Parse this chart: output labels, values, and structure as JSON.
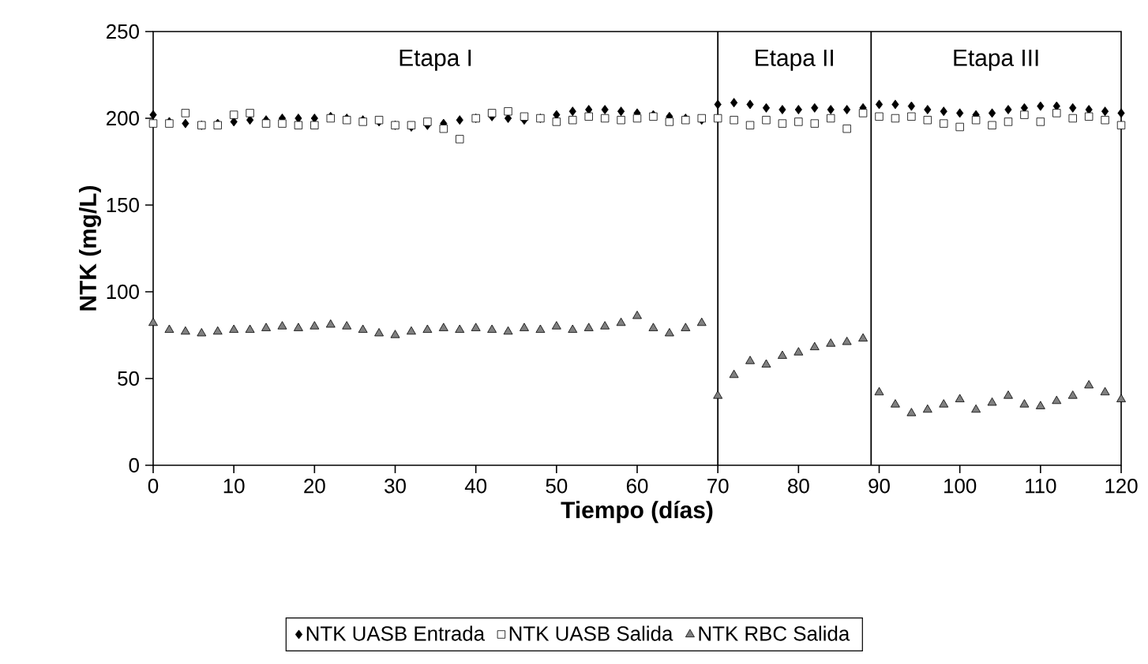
{
  "chart_data": {
    "type": "scatter",
    "xlabel": "Tiempo (días)",
    "ylabel": "NTK (mg/L)",
    "xlim": [
      0,
      120
    ],
    "xticks": [
      0,
      10,
      20,
      30,
      40,
      50,
      60,
      70,
      80,
      90,
      100,
      110,
      120
    ],
    "ylim": [
      0,
      250
    ],
    "yticks": [
      0,
      50,
      100,
      150,
      200,
      250
    ],
    "grid": false,
    "legend": "bottom",
    "x": [
      0,
      2,
      4,
      6,
      8,
      10,
      12,
      14,
      16,
      18,
      20,
      22,
      24,
      26,
      28,
      30,
      32,
      34,
      36,
      38,
      40,
      42,
      44,
      46,
      48,
      50,
      52,
      54,
      56,
      58,
      60,
      62,
      64,
      66,
      68,
      70,
      72,
      74,
      76,
      78,
      80,
      82,
      84,
      86,
      88,
      90,
      92,
      94,
      96,
      98,
      100,
      102,
      104,
      106,
      108,
      110,
      112,
      114,
      116,
      118,
      120
    ],
    "series": [
      {
        "name": "NTK UASB Entrada",
        "color": "#000000",
        "marker": "diamond",
        "values": [
          202,
          198,
          197,
          196,
          197,
          198,
          199,
          199,
          200,
          200,
          200,
          201,
          200,
          199,
          198,
          196,
          195,
          196,
          197,
          199,
          200,
          201,
          200,
          199,
          200,
          202,
          204,
          205,
          205,
          204,
          203,
          202,
          201,
          200,
          199,
          208,
          209,
          208,
          206,
          205,
          205,
          206,
          205,
          205,
          206,
          208,
          208,
          207,
          205,
          204,
          203,
          202,
          203,
          205,
          206,
          207,
          207,
          206,
          205,
          204,
          203
        ]
      },
      {
        "name": "NTK UASB Salida",
        "color": "#ffffff",
        "marker": "square",
        "values": [
          197,
          197,
          203,
          196,
          196,
          202,
          203,
          197,
          197,
          196,
          196,
          200,
          199,
          198,
          199,
          196,
          196,
          198,
          194,
          188,
          200,
          203,
          204,
          201,
          200,
          198,
          199,
          201,
          200,
          199,
          200,
          201,
          198,
          199,
          200,
          200,
          199,
          196,
          199,
          197,
          198,
          197,
          200,
          194,
          203,
          201,
          200,
          201,
          199,
          197,
          195,
          199,
          196,
          198,
          202,
          198,
          203,
          200,
          201,
          199,
          196
        ]
      },
      {
        "name": "NTK RBC Salida",
        "color": "#808080",
        "marker": "triangle",
        "values": [
          82,
          78,
          77,
          76,
          77,
          78,
          78,
          79,
          80,
          79,
          80,
          81,
          80,
          78,
          76,
          75,
          77,
          78,
          79,
          78,
          79,
          78,
          77,
          79,
          78,
          80,
          78,
          79,
          80,
          82,
          86,
          79,
          76,
          79,
          82,
          40,
          52,
          60,
          58,
          63,
          65,
          68,
          70,
          71,
          73,
          42,
          35,
          30,
          32,
          35,
          38,
          32,
          36,
          40,
          35,
          34,
          37,
          40,
          46,
          42,
          38
        ]
      }
    ],
    "ref_lines": [
      {
        "axis": "x",
        "value": 70,
        "color": "#000000"
      },
      {
        "axis": "x",
        "value": 89,
        "color": "#000000"
      }
    ],
    "annotations": [
      "Etapa I",
      "Etapa II",
      "Etapa III"
    ]
  }
}
